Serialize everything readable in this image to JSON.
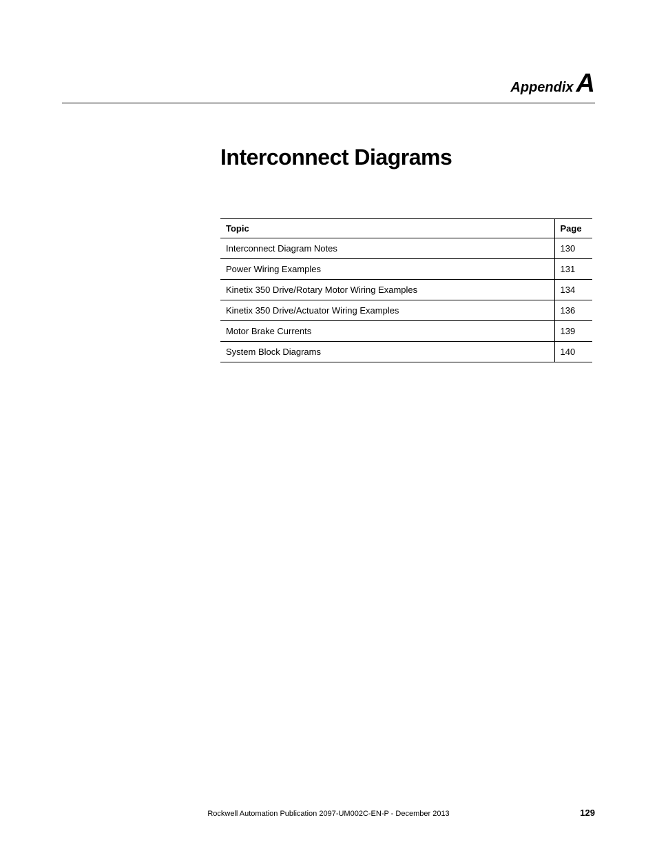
{
  "header": {
    "appendix_word": "Appendix",
    "appendix_letter": "A"
  },
  "title": "Interconnect Diagrams",
  "toc": {
    "headers": {
      "topic": "Topic",
      "page": "Page"
    },
    "rows": [
      {
        "topic": "Interconnect Diagram Notes",
        "page": "130"
      },
      {
        "topic": "Power Wiring Examples",
        "page": "131"
      },
      {
        "topic": "Kinetix 350 Drive/Rotary Motor Wiring Examples",
        "page": "134"
      },
      {
        "topic": "Kinetix 350 Drive/Actuator Wiring Examples",
        "page": "136"
      },
      {
        "topic": "Motor Brake Currents",
        "page": "139"
      },
      {
        "topic": "System Block Diagrams",
        "page": "140"
      }
    ]
  },
  "footer": {
    "text": "Rockwell Automation Publication 2097-UM002C-EN-P - December 2013",
    "page_number": "129"
  }
}
